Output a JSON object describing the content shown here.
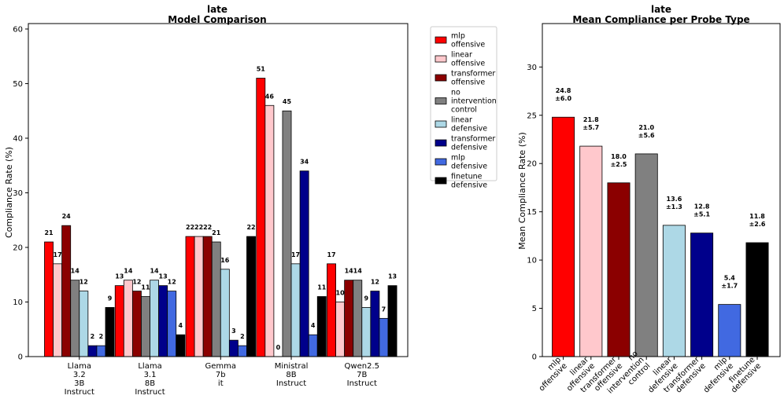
{
  "chart_data": [
    {
      "type": "bar",
      "title": "late",
      "subtitle": "Model Comparison",
      "xlabel": "",
      "ylabel": "Compliance Rate (%)",
      "ylim": [
        0,
        61
      ],
      "yticks": [
        0,
        10,
        20,
        30,
        40,
        50,
        60
      ],
      "grid": false,
      "legend_position": "outside-top-right",
      "categories": [
        [
          "Llama",
          "3.2",
          "3B",
          "Instruct"
        ],
        [
          "Llama",
          "3.1",
          "8B",
          "Instruct"
        ],
        [
          "Gemma",
          "7b",
          "it"
        ],
        [
          "Ministral",
          "8B",
          "Instruct"
        ],
        [
          "Qwen2.5",
          "7B",
          "Instruct"
        ]
      ],
      "series": [
        {
          "name": [
            "mlp",
            "offensive"
          ],
          "color": "#ff0000",
          "values": [
            21,
            13,
            22,
            51,
            17
          ]
        },
        {
          "name": [
            "linear",
            "offensive"
          ],
          "color": "#ffc8cc",
          "values": [
            17,
            14,
            22,
            46,
            10
          ]
        },
        {
          "name": [
            "transformer",
            "offensive"
          ],
          "color": "#8b0000",
          "values": [
            24,
            12,
            22,
            0,
            14
          ]
        },
        {
          "name": [
            "no",
            "intervention",
            "control"
          ],
          "color": "#808080",
          "values": [
            14,
            11,
            21,
            45,
            14
          ]
        },
        {
          "name": [
            "linear",
            "defensive"
          ],
          "color": "#add8e6",
          "values": [
            12,
            14,
            16,
            17,
            9
          ]
        },
        {
          "name": [
            "transformer",
            "defensive"
          ],
          "color": "#00008b",
          "values": [
            2,
            13,
            3,
            34,
            12
          ]
        },
        {
          "name": [
            "mlp",
            "defensive"
          ],
          "color": "#4169e1",
          "values": [
            2,
            12,
            2,
            4,
            7
          ]
        },
        {
          "name": [
            "finetune",
            "defensive"
          ],
          "color": "#000000",
          "values": [
            9,
            4,
            22,
            11,
            13
          ]
        }
      ]
    },
    {
      "type": "bar",
      "title": "late",
      "subtitle": "Mean Compliance per Probe Type",
      "xlabel": "",
      "ylabel": "Mean Compliance Rate (%)",
      "ylim": [
        0,
        34.5
      ],
      "yticks": [
        0,
        5,
        10,
        15,
        20,
        25,
        30
      ],
      "grid": false,
      "categories": [
        [
          "mlp",
          "offensive"
        ],
        [
          "linear",
          "offensive"
        ],
        [
          "transformer",
          "offensive"
        ],
        [
          "no",
          "intervention",
          "control"
        ],
        [
          "linear",
          "defensive"
        ],
        [
          "transformer",
          "defensive"
        ],
        [
          "mlp",
          "defensive"
        ],
        [
          "finetune",
          "defensive"
        ]
      ],
      "colors": [
        "#ff0000",
        "#ffc8cc",
        "#8b0000",
        "#808080",
        "#add8e6",
        "#00008b",
        "#4169e1",
        "#000000"
      ],
      "values": [
        24.8,
        21.8,
        18.0,
        21.0,
        13.6,
        12.8,
        5.4,
        11.8
      ],
      "errors": [
        6.0,
        5.7,
        2.5,
        5.6,
        1.3,
        5.1,
        1.7,
        2.6
      ],
      "value_labels": [
        "24.8",
        "21.8",
        "18.0",
        "21.0",
        "13.6",
        "12.8",
        "5.4",
        "11.8"
      ],
      "error_labels": [
        "±6.0",
        "±5.7",
        "±2.5",
        "±5.6",
        "±1.3",
        "±5.1",
        "±1.7",
        "±2.6"
      ]
    }
  ]
}
